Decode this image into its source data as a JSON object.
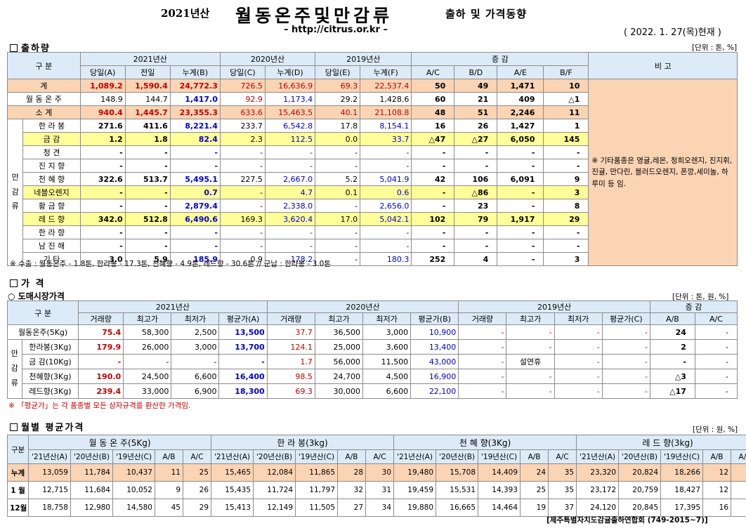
{
  "header": {
    "year": "2021년산",
    "main": "월동온주및만감류",
    "sub": "출하 및 가격동향",
    "url": "– http://citrus.or.kr –",
    "date": "( 2022. 1. 27(목)현재 )"
  },
  "s1": {
    "title": "출하량",
    "unit": "[단위 : 톤, %]",
    "h1": [
      "구   분",
      "2021년산",
      "2020년산",
      "2019년산",
      "증   감",
      "비 고"
    ],
    "h2": [
      "당일(A)",
      "전일",
      "누계(B)",
      "당일(C)",
      "누계(D)",
      "당일(E)",
      "누계(F)",
      "A/C",
      "B/D",
      "A/E",
      "B/F"
    ],
    "cat": [
      "만",
      "감",
      "류"
    ],
    "rows": [
      {
        "label": "계",
        "v": [
          "1,089.2",
          "1,590.4",
          "24,772.3",
          "726.5",
          "16,636.9",
          "69.3",
          "22,537.4",
          "50",
          "49",
          "1,471",
          "10"
        ]
      },
      {
        "label": "월 동 온 주",
        "v": [
          "148.9",
          "144.7",
          "1,417.0",
          "92.9",
          "1,173.4",
          "29.2",
          "1,428.6",
          "60",
          "21",
          "409",
          "△1"
        ]
      },
      {
        "label": "소    계",
        "v": [
          "940.4",
          "1,445.7",
          "23,355.3",
          "633.6",
          "15,463.5",
          "40.1",
          "21,108.8",
          "48",
          "51",
          "2,246",
          "11"
        ]
      },
      {
        "label": "한 라 봉",
        "v": [
          "271.6",
          "411.6",
          "8,221.4",
          "233.7",
          "6,542.8",
          "17.8",
          "8,154.1",
          "16",
          "26",
          "1,427",
          "1"
        ]
      },
      {
        "label": "금    감",
        "v": [
          "1.2",
          "1.8",
          "82.4",
          "2.3",
          "112.5",
          "0.0",
          "33.7",
          "△47",
          "△27",
          "6,050",
          "145"
        ]
      },
      {
        "label": "청    견",
        "v": [
          "-",
          "-",
          "-",
          "-",
          "-",
          "-",
          "-",
          "-",
          "-",
          "-",
          "-"
        ]
      },
      {
        "label": "진 지 향",
        "v": [
          "-",
          "-",
          "-",
          "-",
          "-",
          "-",
          "-",
          "-",
          "-",
          "-",
          "-"
        ]
      },
      {
        "label": "천 혜 향",
        "v": [
          "322.6",
          "513.7",
          "5,495.1",
          "227.5",
          "2,667.0",
          "5.2",
          "5,041.9",
          "42",
          "106",
          "6,091",
          "9"
        ]
      },
      {
        "label": "네블오렌지",
        "v": [
          "-",
          "-",
          "0.7",
          "-",
          "4.7",
          "0.1",
          "0.6",
          "-",
          "△86",
          "-",
          "3"
        ]
      },
      {
        "label": "황 금 향",
        "v": [
          "-",
          "-",
          "2,879.4",
          "-",
          "2,338.0",
          "-",
          "2,656.0",
          "-",
          "23",
          "-",
          "8"
        ]
      },
      {
        "label": "레 드 향",
        "v": [
          "342.0",
          "512.8",
          "6,490.6",
          "169.3",
          "3,620.4",
          "17.0",
          "5,042.1",
          "102",
          "79",
          "1,917",
          "29"
        ]
      },
      {
        "label": "한 라 향",
        "v": [
          "-",
          "-",
          "-",
          "-",
          "-",
          "-",
          "-",
          "-",
          "-",
          "-",
          "-"
        ]
      },
      {
        "label": "남 진 해",
        "v": [
          "-",
          "-",
          "-",
          "-",
          "-",
          "-",
          "-",
          "-",
          "-",
          "-",
          "-"
        ]
      },
      {
        "label": "기    타",
        "v": [
          "3.0",
          "5.9",
          "185.9",
          "0.9",
          "178.2",
          "-",
          "180.3",
          "252",
          "4",
          "-",
          "3"
        ]
      }
    ],
    "remark": "※ 기타품종은 영귤,레몬, 청희오렌지, 진지휘, 진귤, 만다린, 블러드오렌지, 폰깡,세미놀, 하루미 등 임.",
    "note": "※ 수출 :  월동온주 - 1.8톤,  한라봉 - 17.3톤,  천혜향 - 4.9톤,  레드향 - 30.6톤  //  군납 : 한라봉 - 3.0톤"
  },
  "s2": {
    "title": "가   격",
    "subtitle": "○ 도매시장가격",
    "unit": "[단위 : 톤, 원, %]",
    "h1": [
      "구   분",
      "2021년산",
      "2020년산",
      "2019년산",
      "증   감"
    ],
    "h2": [
      "거래량",
      "최고가",
      "최저가",
      "평균가(A)",
      "거래량",
      "최고가",
      "최저가",
      "평균가(B)",
      "거래량",
      "최고가",
      "최저가",
      "평균가(C)",
      "A/B",
      "A/C"
    ],
    "cat": [
      "만",
      "감",
      "류"
    ],
    "rows": [
      {
        "label": "월동온주(5Kg)",
        "v": [
          "75.4",
          "58,300",
          "2,500",
          "13,500",
          "37.7",
          "36,500",
          "3,000",
          "10,900",
          "-",
          "-",
          "-",
          "-",
          "24",
          "-"
        ]
      },
      {
        "label": "한라봉(3Kg)",
        "v": [
          "179.9",
          "26,000",
          "3,000",
          "13,700",
          "124.1",
          "25,000",
          "3,600",
          "13,400",
          "-",
          "-",
          "-",
          "-",
          "2",
          "-"
        ]
      },
      {
        "label": "금  감(10Kg)",
        "v": [
          "-",
          "-",
          "-",
          "-",
          "1.7",
          "56,000",
          "11,500",
          "43,000",
          "-",
          "설연휴",
          "-",
          "-",
          "-",
          "-"
        ]
      },
      {
        "label": "천혜향(3Kg)",
        "v": [
          "190.0",
          "24,500",
          "6,600",
          "16,400",
          "98.5",
          "24,700",
          "4,500",
          "16,900",
          "-",
          "-",
          "-",
          "-",
          "△3",
          "-"
        ]
      },
      {
        "label": "레드향(3Kg)",
        "v": [
          "239.4",
          "33,000",
          "6,900",
          "18,300",
          "69.3",
          "30,000",
          "6,600",
          "22,100",
          "-",
          "-",
          "-",
          "-",
          "△17",
          "-"
        ]
      }
    ],
    "note": "※ 「평균가」는 각 품종별 모든 상자규격를 환산한 가격임."
  },
  "s3": {
    "title": "월별 평균가격",
    "unit": "[단위 : 원, %]",
    "groups": [
      "월 동 온 주(5Kg)",
      "한  라  봉(3kg)",
      "천 혜 향(3Kg)",
      "레 드 향(3kg)"
    ],
    "h2": [
      "'21년산(A)",
      "'20년산(B)",
      "'19년산(C)",
      "A/B",
      "A/C"
    ],
    "rowhead": "구분",
    "rows": [
      {
        "label": "누계",
        "v": [
          "13,059",
          "11,784",
          "10,437",
          "11",
          "25",
          "15,465",
          "12,084",
          "11,865",
          "28",
          "30",
          "19,480",
          "15,708",
          "14,409",
          "24",
          "35",
          "23,320",
          "20,824",
          "18,266",
          "12",
          "28"
        ]
      },
      {
        "label": "1 월",
        "v": [
          "12,715",
          "11,684",
          "10,052",
          "9",
          "26",
          "15,435",
          "11,724",
          "11,797",
          "32",
          "31",
          "19,459",
          "15,531",
          "14,393",
          "25",
          "35",
          "23,172",
          "20,759",
          "18,427",
          "12",
          "26"
        ]
      },
      {
        "label": "12월",
        "v": [
          "18,758",
          "12,980",
          "14,580",
          "45",
          "29",
          "15,413",
          "12,149",
          "11,505",
          "27",
          "34",
          "19,880",
          "16,665",
          "14,464",
          "19",
          "37",
          "24,120",
          "20,845",
          "17,395",
          "16",
          "39"
        ]
      }
    ]
  },
  "footer": "[제주특별자치도감귤출하연합회 (749-2015~7)]"
}
